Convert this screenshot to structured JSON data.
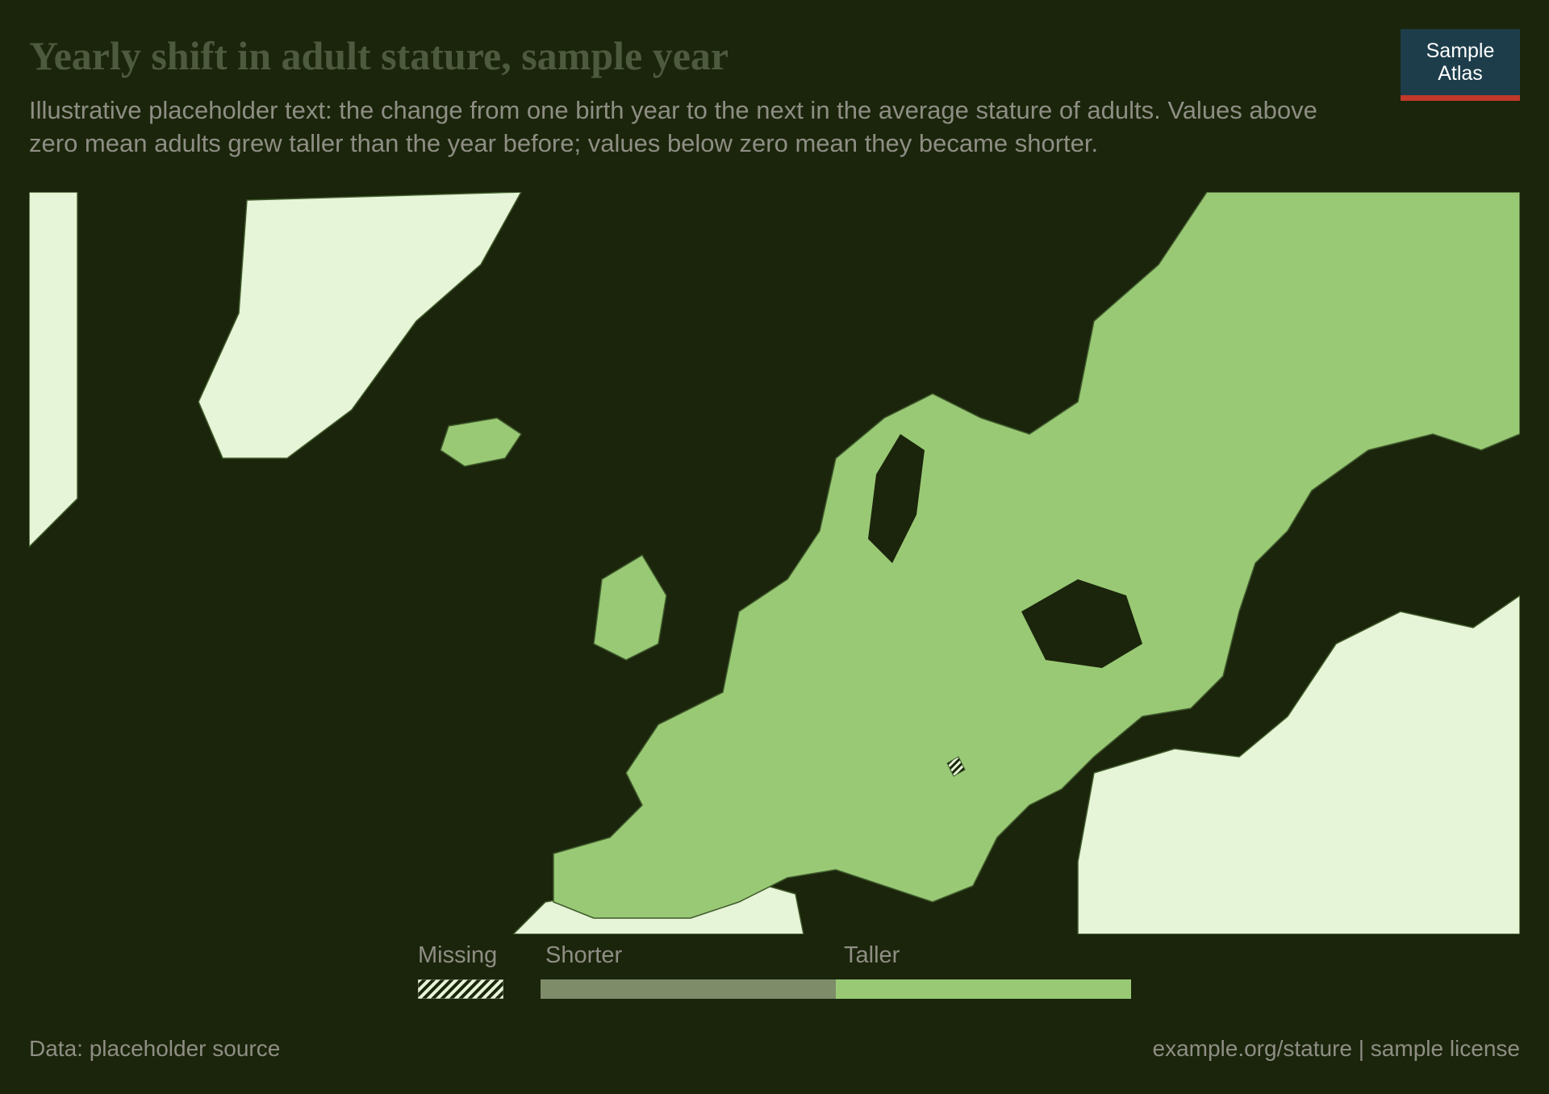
{
  "header": {
    "title": "Yearly shift in adult stature, sample year",
    "subtitle": "Illustrative placeholder text: the change from one birth year to the next in the average stature of adults. Values above zero mean adults grew taller than the year before; values below zero mean they became shorter."
  },
  "brand": {
    "line1": "Sample",
    "line2": "Atlas"
  },
  "legend": {
    "no_data_label": "Missing",
    "bins": [
      {
        "label": "Shorter",
        "color": "#7e8c6a"
      },
      {
        "label": "Taller",
        "color": "#99c975"
      }
    ]
  },
  "colors": {
    "background": "#1b250b",
    "in_dataset": "#99c975",
    "outside_dataset": "#e6f4d7",
    "water": "#1b250b",
    "border": "#3f5a2c"
  },
  "footer": {
    "source": "Data: placeholder source",
    "license": "example.org/stature | sample license"
  }
}
